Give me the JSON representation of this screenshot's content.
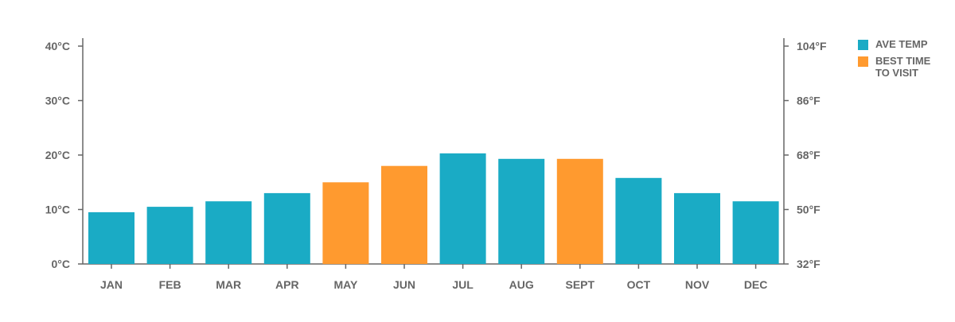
{
  "chart_data": {
    "type": "bar",
    "categories": [
      "JAN",
      "FEB",
      "MAR",
      "APR",
      "MAY",
      "JUN",
      "JUL",
      "AUG",
      "SEPT",
      "OCT",
      "NOV",
      "DEC"
    ],
    "values": [
      9.5,
      10.5,
      11.5,
      13,
      15,
      18,
      20.3,
      19.3,
      19.3,
      15.8,
      13,
      11.5
    ],
    "highlight": [
      false,
      false,
      false,
      false,
      true,
      true,
      false,
      false,
      true,
      false,
      false,
      false
    ],
    "ylim": [
      0,
      40
    ],
    "y_ticks": [
      0,
      10,
      20,
      30,
      40
    ],
    "y_tick_labels": [
      "0°C",
      "10°C",
      "20°C",
      "30°C",
      "40°C"
    ],
    "y2_tick_labels": [
      "32°F",
      "50°F",
      "68°F",
      "86°F",
      "104°F"
    ],
    "grid": false,
    "legend_position": "top-right",
    "legend": [
      {
        "label": "AVE TEMP",
        "color": "#1aabc5"
      },
      {
        "label": "BEST TIME\nTO VISIT",
        "color": "#ff9a2f"
      }
    ],
    "colors": {
      "base": "#1aabc5",
      "highlight": "#ff9a2f",
      "axis": "#666666",
      "text": "#666666"
    }
  }
}
